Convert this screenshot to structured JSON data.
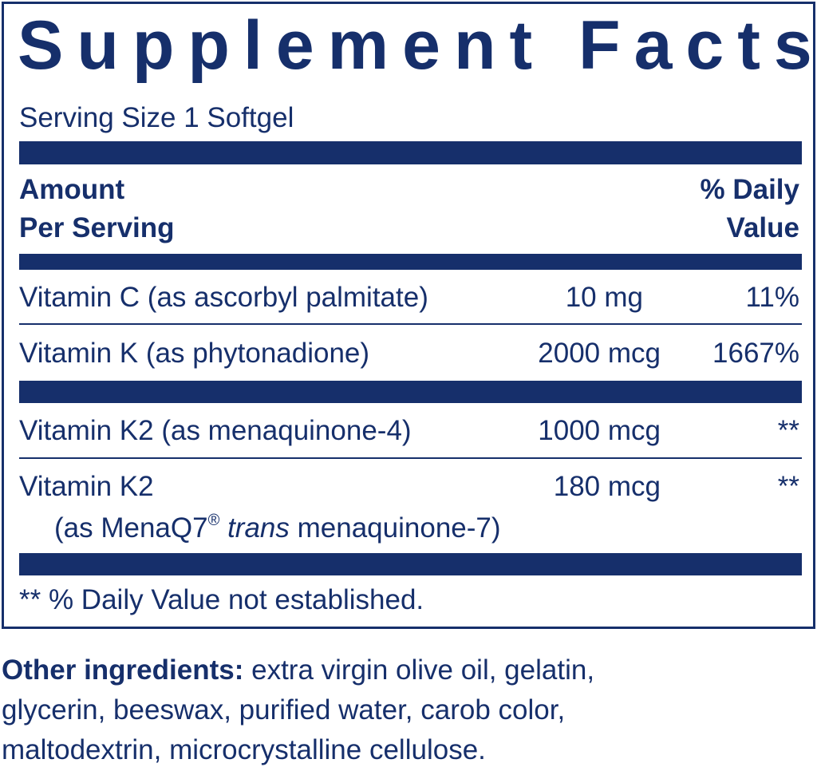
{
  "label": {
    "title": "Supplement Facts",
    "serving_size": "Serving Size 1 Softgel",
    "header": {
      "amount_line1": "Amount",
      "amount_line2": "Per Serving",
      "dv_line1": "% Daily",
      "dv_line2": "Value"
    },
    "rows": [
      {
        "name": "Vitamin C (as ascorbyl palmitate)",
        "amount": "10 mg",
        "dv": "11%"
      },
      {
        "name": "Vitamin K (as phytonadione)",
        "amount": "2000 mcg",
        "dv": "1667%"
      },
      {
        "name": "Vitamin K2 (as menaquinone-4)",
        "amount": "1000 mcg",
        "dv": "**"
      },
      {
        "name": "Vitamin K2",
        "sub_prefix": "(as MenaQ7",
        "sub_reg": "®",
        "sub_italic": "trans",
        "sub_suffix": "menaquinone-7)",
        "amount": "180 mcg",
        "dv": "**"
      }
    ],
    "footnote": "** % Daily Value not established."
  },
  "other_ingredients": {
    "label": "Other ingredients:",
    "line1": "extra virgin olive oil, gelatin,",
    "line2": "glycerin, beeswax, purified water, carob color,",
    "line3": "maltodextrin, microcrystalline cellulose."
  },
  "colors": {
    "ink": "#162f6b",
    "background": "#ffffff"
  }
}
